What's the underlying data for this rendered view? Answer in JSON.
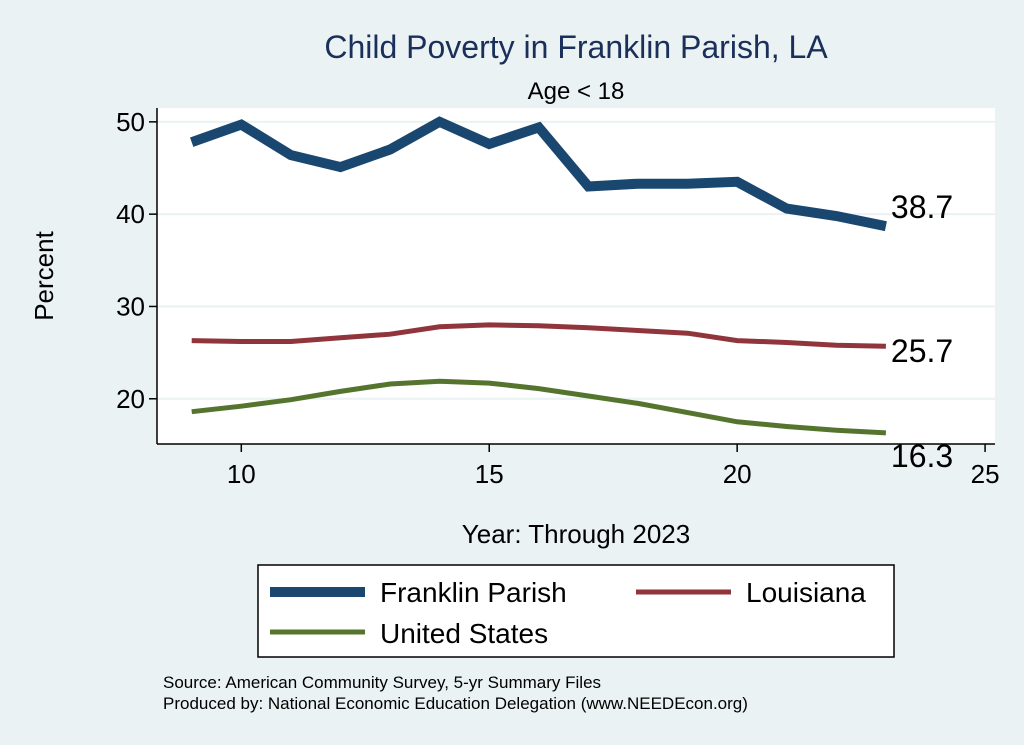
{
  "chart_data": {
    "type": "line",
    "title": "Child Poverty in Franklin Parish, LA",
    "subtitle": "Age < 18",
    "xlabel": "Year: Through 2023",
    "ylabel": "Percent",
    "xlim": [
      8.3,
      25.2
    ],
    "ylim": [
      15.1,
      51.5
    ],
    "xticks": [
      10,
      15,
      20,
      25
    ],
    "yticks": [
      20,
      30,
      40,
      50
    ],
    "x": [
      9,
      10,
      11,
      12,
      13,
      14,
      15,
      16,
      17,
      18,
      19,
      20,
      21,
      22,
      23
    ],
    "series": [
      {
        "name": "Franklin Parish",
        "color": "#1a476f",
        "values": [
          47.8,
          49.7,
          46.4,
          45.1,
          47.0,
          50.0,
          47.6,
          49.4,
          43.0,
          43.3,
          43.3,
          43.5,
          40.6,
          39.8,
          38.7
        ],
        "end_label": "38.7"
      },
      {
        "name": "Louisiana",
        "color": "#90353b",
        "values": [
          26.3,
          26.2,
          26.2,
          26.6,
          27.0,
          27.8,
          28.0,
          27.9,
          27.7,
          27.4,
          27.1,
          26.3,
          26.1,
          25.8,
          25.7
        ],
        "end_label": "25.7"
      },
      {
        "name": "United States",
        "color": "#55752f",
        "values": [
          18.6,
          19.2,
          19.9,
          20.8,
          21.6,
          21.9,
          21.7,
          21.1,
          20.3,
          19.5,
          18.5,
          17.5,
          17.0,
          16.6,
          16.3
        ],
        "end_label": "16.3"
      }
    ],
    "legend": {
      "entries": [
        "Franklin Parish",
        "Louisiana",
        "United States"
      ],
      "placement": "bottom"
    },
    "notes": [
      "Source: American Community Survey, 5-yr Summary Files",
      "Produced by: National Economic Education Delegation (www.NEEDEcon.org)"
    ],
    "grid": true
  }
}
